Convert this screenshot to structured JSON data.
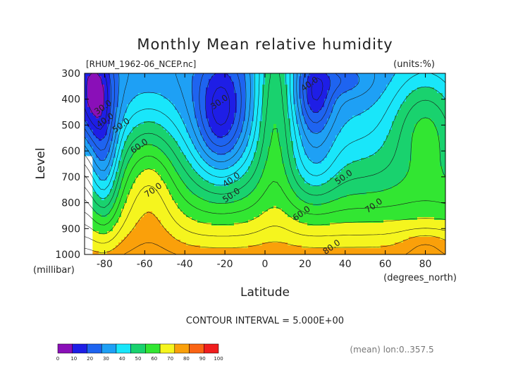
{
  "chart_data": {
    "type": "heatmap",
    "subtype": "filled-contour",
    "title": "Monthly Mean relative humidity",
    "file_label": "[RHUM_1962-06_NCEP.nc]",
    "units_label": "(units:%)",
    "xlabel": "Latitude",
    "x_units": "(degrees_north)",
    "ylabel": "Level",
    "y_units": "(millibar)",
    "xlim": [
      -90,
      90
    ],
    "ylim": [
      1000,
      300
    ],
    "x_ticks": [
      -80,
      -60,
      -40,
      -20,
      0,
      20,
      40,
      60,
      80
    ],
    "y_ticks": [
      300,
      400,
      500,
      600,
      700,
      800,
      900,
      1000
    ],
    "contour_interval_text": "CONTOUR INTERVAL = 5.000E+00",
    "footnote": "(mean) lon:0..357.5",
    "colorbar": {
      "ticks": [
        "0",
        "10",
        "20",
        "30",
        "40",
        "50",
        "60",
        "70",
        "80",
        "90",
        "100"
      ],
      "colors": [
        "#8a0fb8",
        "#1e1ee6",
        "#1e64f0",
        "#1ea0f5",
        "#19e6fa",
        "#19d26e",
        "#32e632",
        "#f5f51e",
        "#faa00a",
        "#fa6414",
        "#f01e1e"
      ]
    },
    "contour_labels": [
      {
        "text": "30.0",
        "lat": -80,
        "lev": 440
      },
      {
        "text": "40.0",
        "lat": -79,
        "lev": 490
      },
      {
        "text": "50.0",
        "lat": -71,
        "lev": 510
      },
      {
        "text": "60.0",
        "lat": -62,
        "lev": 590
      },
      {
        "text": "70.0",
        "lat": -55,
        "lev": 760
      },
      {
        "text": "30.0",
        "lat": -22,
        "lev": 420
      },
      {
        "text": "40.0",
        "lat": -16,
        "lev": 720
      },
      {
        "text": "50.0",
        "lat": -16,
        "lev": 780
      },
      {
        "text": "40.0",
        "lat": 23,
        "lev": 350
      },
      {
        "text": "50.0",
        "lat": 40,
        "lev": 710
      },
      {
        "text": "60.0",
        "lat": 19,
        "lev": 850
      },
      {
        "text": "70.0",
        "lat": 55,
        "lev": 820
      },
      {
        "text": "80.0",
        "lat": 34,
        "lev": 980
      }
    ],
    "grid": false,
    "legend": "bottom-left colorbar"
  }
}
